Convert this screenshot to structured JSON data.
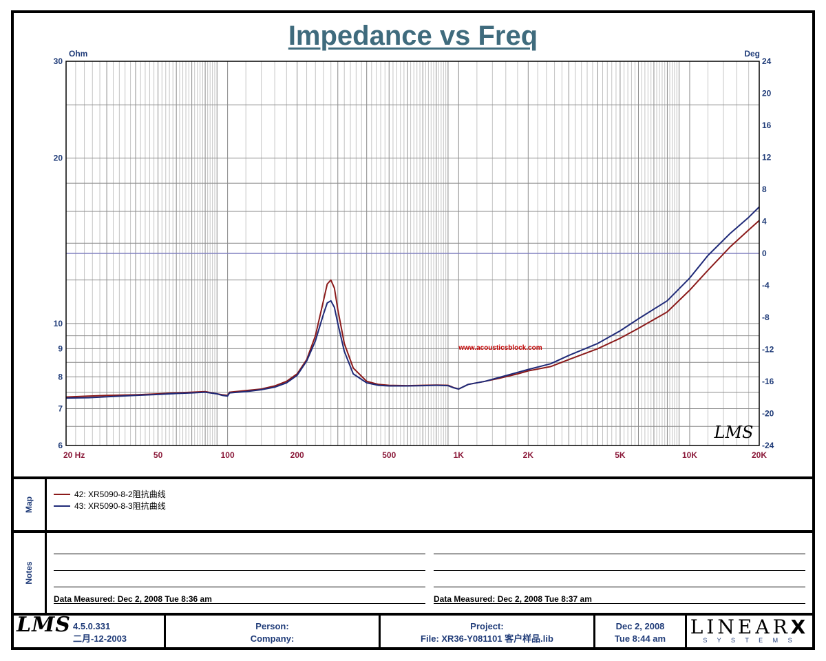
{
  "chart_data": {
    "type": "line",
    "title": "Impedance vs Freq",
    "y_left_unit": "Ohm",
    "y_right_unit": "Deg",
    "x_scale": "log",
    "y_left_scale": "log",
    "xlim": [
      20,
      20000
    ],
    "ylim_left": [
      6,
      30
    ],
    "ylim_right": [
      -24,
      24
    ],
    "grid": true,
    "x_ticks": [
      {
        "v": 20,
        "label": "20  Hz"
      },
      {
        "v": 50,
        "label": "50"
      },
      {
        "v": 100,
        "label": "100"
      },
      {
        "v": 200,
        "label": "200"
      },
      {
        "v": 500,
        "label": "500"
      },
      {
        "v": 1000,
        "label": "1K"
      },
      {
        "v": 2000,
        "label": "2K"
      },
      {
        "v": 5000,
        "label": "5K"
      },
      {
        "v": 10000,
        "label": "10K"
      },
      {
        "v": 20000,
        "label": "20K"
      }
    ],
    "y_left_ticks": [
      {
        "v": 30,
        "label": "30"
      },
      {
        "v": 20,
        "label": "20"
      },
      {
        "v": 10,
        "label": "10"
      },
      {
        "v": 9,
        "label": "9"
      },
      {
        "v": 8,
        "label": "8"
      },
      {
        "v": 7,
        "label": "7"
      },
      {
        "v": 6,
        "label": "6"
      }
    ],
    "y_right_ticks": [
      {
        "v": 24,
        "label": "24"
      },
      {
        "v": 20,
        "label": "20"
      },
      {
        "v": 16,
        "label": "16"
      },
      {
        "v": 12,
        "label": "12"
      },
      {
        "v": 8,
        "label": "8"
      },
      {
        "v": 4,
        "label": "4"
      },
      {
        "v": 0,
        "label": "0"
      },
      {
        "v": -4,
        "label": "-4"
      },
      {
        "v": -8,
        "label": "-8"
      },
      {
        "v": -12,
        "label": "-12"
      },
      {
        "v": -16,
        "label": "-16"
      },
      {
        "v": -20,
        "label": "-20"
      },
      {
        "v": -24,
        "label": "-24"
      }
    ],
    "annotation": "www.acousticsblock.com",
    "watermark": "LMS",
    "series": [
      {
        "name": "42: XR5090-8-2阻抗曲线",
        "color": "#8b1a1a",
        "x": [
          20,
          25,
          30,
          40,
          50,
          60,
          70,
          80,
          90,
          95,
          100,
          102,
          120,
          140,
          160,
          180,
          200,
          220,
          240,
          260,
          270,
          280,
          290,
          300,
          320,
          350,
          400,
          450,
          500,
          600,
          700,
          800,
          900,
          950,
          1000,
          1100,
          1300,
          1500,
          1800,
          2000,
          2500,
          3000,
          4000,
          5000,
          6000,
          8000,
          10000,
          12000,
          15000,
          18000,
          20000
        ],
        "y": [
          7.35,
          7.38,
          7.4,
          7.42,
          7.45,
          7.48,
          7.5,
          7.52,
          7.45,
          7.42,
          7.4,
          7.5,
          7.55,
          7.6,
          7.7,
          7.85,
          8.1,
          8.6,
          9.5,
          11.0,
          11.8,
          12.0,
          11.6,
          10.6,
          9.2,
          8.3,
          7.85,
          7.75,
          7.72,
          7.71,
          7.72,
          7.73,
          7.72,
          7.65,
          7.6,
          7.75,
          7.85,
          7.95,
          8.1,
          8.2,
          8.35,
          8.6,
          9.0,
          9.4,
          9.8,
          10.5,
          11.5,
          12.5,
          13.8,
          14.8,
          15.4
        ]
      },
      {
        "name": "43: XR5090-8-3阻抗曲线",
        "color": "#1f2a78",
        "x": [
          20,
          25,
          30,
          40,
          50,
          60,
          70,
          80,
          90,
          95,
          100,
          102,
          120,
          140,
          160,
          180,
          200,
          220,
          240,
          260,
          270,
          280,
          290,
          300,
          320,
          350,
          400,
          450,
          500,
          600,
          700,
          800,
          900,
          950,
          1000,
          1100,
          1300,
          1500,
          1800,
          2000,
          2500,
          3000,
          4000,
          5000,
          6000,
          8000,
          10000,
          12000,
          15000,
          18000,
          20000
        ],
        "y": [
          7.32,
          7.33,
          7.36,
          7.4,
          7.43,
          7.46,
          7.48,
          7.5,
          7.45,
          7.4,
          7.38,
          7.48,
          7.52,
          7.58,
          7.66,
          7.8,
          8.05,
          8.55,
          9.3,
          10.4,
          10.9,
          11.0,
          10.7,
          10.0,
          8.9,
          8.1,
          7.8,
          7.72,
          7.7,
          7.7,
          7.71,
          7.72,
          7.71,
          7.64,
          7.6,
          7.75,
          7.85,
          7.98,
          8.15,
          8.25,
          8.45,
          8.75,
          9.2,
          9.7,
          10.2,
          11.0,
          12.1,
          13.3,
          14.6,
          15.6,
          16.3
        ]
      }
    ]
  },
  "map_label": "Map",
  "notes_label": "Notes",
  "notes": {
    "left_measured": "Data Measured: Dec  2, 2008  Tue  8:36 am",
    "right_measured": "Data Measured: Dec  2, 2008  Tue  8:37 am"
  },
  "footer": {
    "logo": "LMS",
    "version": "4.5.0.331",
    "build_date": "二月-12-2003",
    "person_label": "Person:",
    "company_label": "Company:",
    "project_label": "Project:",
    "file_label": "File: XR36-Y081101 客户样品.lib",
    "date": "Dec  2, 2008",
    "time": "Tue  8:44 am",
    "brand": "LINEAR",
    "brand_x": "X",
    "brand_sub": "S Y S T E M S"
  }
}
